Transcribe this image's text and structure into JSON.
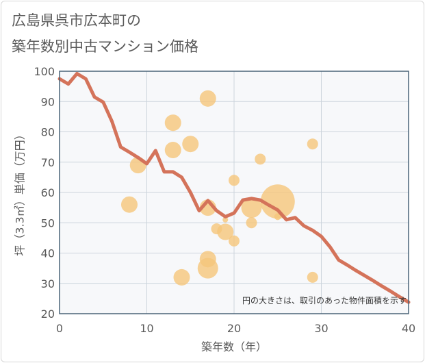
{
  "title_line1": "広島県呉市広本町の",
  "title_line2": "築年数別中古マンション価格",
  "note": "円の大きさは、取引のあった物件面積を示す",
  "chart_data": {
    "type": "scatter",
    "xlabel": "築年数（年）",
    "ylabel": "坪（3.3㎡）単価（万円）",
    "xlim": [
      0,
      40
    ],
    "ylim": [
      20,
      100
    ],
    "xticks": [
      0,
      10,
      20,
      30,
      40
    ],
    "yticks": [
      20,
      30,
      40,
      50,
      60,
      70,
      80,
      90,
      100
    ],
    "grid": true,
    "colors": {
      "line": "#d4735a",
      "bubble": "#f5c67a",
      "plot_bg": "#f7f8fa",
      "grid": "#ccd4dc",
      "frame": "#4a6478"
    },
    "bubbles": [
      {
        "x": 8,
        "y": 56,
        "size": 12
      },
      {
        "x": 9,
        "y": 69,
        "size": 12
      },
      {
        "x": 13,
        "y": 83,
        "size": 12
      },
      {
        "x": 13,
        "y": 74,
        "size": 12
      },
      {
        "x": 14,
        "y": 32,
        "size": 12
      },
      {
        "x": 15,
        "y": 76,
        "size": 12
      },
      {
        "x": 17,
        "y": 91,
        "size": 12
      },
      {
        "x": 17,
        "y": 55,
        "size": 12
      },
      {
        "x": 17,
        "y": 38,
        "size": 12
      },
      {
        "x": 17,
        "y": 35,
        "size": 15
      },
      {
        "x": 18,
        "y": 48,
        "size": 8
      },
      {
        "x": 19,
        "y": 47,
        "size": 12
      },
      {
        "x": 19,
        "y": 51,
        "size": 4
      },
      {
        "x": 20,
        "y": 64,
        "size": 8
      },
      {
        "x": 20,
        "y": 44,
        "size": 8
      },
      {
        "x": 22,
        "y": 55,
        "size": 15
      },
      {
        "x": 22,
        "y": 50,
        "size": 8
      },
      {
        "x": 23,
        "y": 71,
        "size": 8
      },
      {
        "x": 25,
        "y": 57,
        "size": 25
      },
      {
        "x": 25,
        "y": 52,
        "size": 5
      },
      {
        "x": 29,
        "y": 76,
        "size": 8
      },
      {
        "x": 29,
        "y": 32,
        "size": 8
      }
    ],
    "series": [
      {
        "x": [
          0,
          1,
          2,
          3,
          4,
          5,
          6,
          7,
          8,
          9,
          10,
          11,
          12,
          13,
          14,
          15,
          16,
          17,
          18,
          19,
          20,
          21,
          22,
          23,
          24,
          25,
          26,
          27,
          28,
          29,
          30,
          31,
          32,
          33,
          34,
          35,
          36,
          37,
          38,
          39,
          40
        ],
        "y": [
          97.5,
          95.8,
          99.2,
          97.5,
          91.5,
          89.8,
          83.5,
          75,
          73.3,
          71.5,
          69.5,
          73.8,
          66.8,
          66.8,
          65,
          60,
          54,
          57.3,
          54,
          52,
          53.2,
          57.5,
          58,
          57.5,
          55.8,
          54.2,
          51,
          51.7,
          49,
          47.5,
          45.5,
          42,
          37.7,
          36,
          34.2,
          32.5,
          30.8,
          29,
          27.3,
          25.5,
          23.8
        ]
      }
    ]
  }
}
